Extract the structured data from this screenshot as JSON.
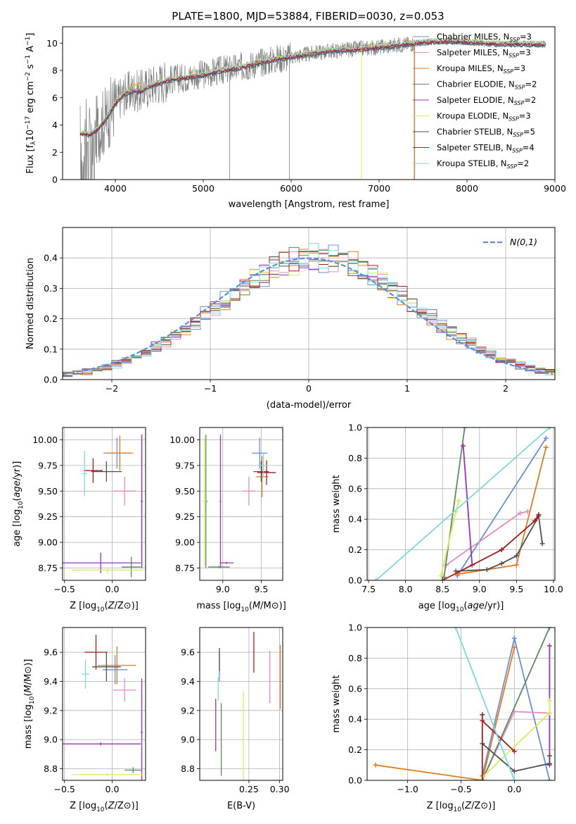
{
  "figure_title": "PLATE=1800, MJD=53884, FIBERID=0030, z=0.053",
  "colors": {
    "chabrier_miles": "#6a8fd8",
    "salpeter_miles": "#e58bc1",
    "kroupa_miles": "#e07b20",
    "chabrier_elodie": "#5a8a5e",
    "salpeter_elodie": "#9b30b8",
    "kroupa_elodie": "#d9ec5b",
    "chabrier_stelib": "#505050",
    "salpeter_stelib": "#a51c1c",
    "kroupa_stelib": "#7fd7df",
    "data": "#808080",
    "normal": "#5b8ed6"
  },
  "chart_data": [
    {
      "id": "spectrum",
      "type": "line",
      "title": "PLATE=1800, MJD=53884, FIBERID=0030, z=0.053",
      "xlabel": "wavelength [Angstrom, rest frame]",
      "ylabel_parts": [
        "Flux [f",
        "λ",
        "10",
        "−17",
        " erg cm",
        "−2",
        " s",
        "−1",
        " A",
        "−1",
        "]"
      ],
      "xlim": [
        3400,
        9000
      ],
      "ylim": [
        0,
        11.2
      ],
      "xticks": [
        4000,
        5000,
        6000,
        7000,
        8000,
        9000
      ],
      "yticks": [
        0,
        2,
        4,
        6,
        8,
        10
      ],
      "continuum": [
        [
          3600,
          3.4
        ],
        [
          3700,
          3.3
        ],
        [
          3800,
          3.7
        ],
        [
          3900,
          4.5
        ],
        [
          4000,
          5.6
        ],
        [
          4100,
          6.3
        ],
        [
          4200,
          6.5
        ],
        [
          4300,
          6.5
        ],
        [
          4400,
          6.9
        ],
        [
          4600,
          7.3
        ],
        [
          4800,
          7.5
        ],
        [
          5000,
          7.7
        ],
        [
          5200,
          8.0
        ],
        [
          5400,
          8.2
        ],
        [
          5600,
          8.5
        ],
        [
          5800,
          8.8
        ],
        [
          6000,
          9.0
        ],
        [
          6200,
          9.2
        ],
        [
          6400,
          9.4
        ],
        [
          6600,
          9.5
        ],
        [
          6800,
          9.6
        ],
        [
          7000,
          9.7
        ],
        [
          7200,
          9.85
        ],
        [
          7400,
          10.0
        ],
        [
          7600,
          10.1
        ],
        [
          7800,
          10.15
        ],
        [
          8000,
          10.1
        ],
        [
          8200,
          10.0
        ],
        [
          8400,
          9.95
        ],
        [
          8600,
          9.95
        ],
        [
          8900,
          9.9
        ]
      ],
      "legend": [
        {
          "label": "Chabrier MILES, N",
          "sub": "SSP",
          "suffix": "=3",
          "color": "#6a8fd8"
        },
        {
          "label": "Salpeter MILES, N",
          "sub": "SSP",
          "suffix": "=3",
          "color": "#e58bc1"
        },
        {
          "label": "Kroupa MILES, N",
          "sub": "SSP",
          "suffix": "=3",
          "color": "#e07b20"
        },
        {
          "label": "Chabrier ELODIE, N",
          "sub": "SSP",
          "suffix": "=2",
          "color": "#5a8a5e"
        },
        {
          "label": "Salpeter ELODIE, N",
          "sub": "SSP",
          "suffix": "=2",
          "color": "#9b30b8"
        },
        {
          "label": "Kroupa ELODIE, N",
          "sub": "SSP",
          "suffix": "=3",
          "color": "#d9ec5b"
        },
        {
          "label": "Chabrier STELIB, N",
          "sub": "SSP",
          "suffix": "=5",
          "color": "#505050"
        },
        {
          "label": "Salpeter STELIB, N",
          "sub": "SSP",
          "suffix": "=4",
          "color": "#a51c1c"
        },
        {
          "label": "Kroupa STELIB, N",
          "sub": "SSP",
          "suffix": "=2",
          "color": "#7fd7df"
        }
      ]
    },
    {
      "id": "residuals",
      "type": "line",
      "xlabel": "(data-model)/error",
      "ylabel": "Normed distribution",
      "xlim": [
        -2.5,
        2.5
      ],
      "ylim": [
        0,
        0.5
      ],
      "xticks": [
        -2,
        -1,
        0,
        1,
        2
      ],
      "xtick_labels": [
        "−2",
        "−1",
        "0",
        "1",
        "2"
      ],
      "yticks": [
        0.0,
        0.1,
        0.2,
        0.3,
        0.4
      ],
      "ytick_labels": [
        "0.0",
        "0.1",
        "0.2",
        "0.3",
        "0.4"
      ],
      "legend": "N(0,1)",
      "bin_width": 0.1,
      "grid": true
    },
    {
      "id": "age_vs_Z",
      "type": "scatter",
      "xlabel": "Z [log10(Z/Z⊙)]",
      "ylabel": "age [log10(age/yr)]",
      "xlim": [
        -0.52,
        0.35
      ],
      "ylim": [
        8.63,
        10.12
      ],
      "xticks": [
        -0.5,
        0.0
      ],
      "xtick_labels": [
        "−0.5",
        "0.0"
      ],
      "yticks": [
        8.75,
        9.0,
        9.25,
        9.5,
        9.75,
        10.0
      ],
      "ytick_labels": [
        "8.75",
        "9.00",
        "9.25",
        "9.50",
        "9.75",
        "10.00"
      ],
      "points": [
        {
          "c": "chabrier_miles",
          "x": 0.05,
          "y": 9.87,
          "xe": 0.14,
          "ye": 0.15
        },
        {
          "c": "salpeter_miles",
          "x": 0.13,
          "y": 9.5,
          "xe": 0.12,
          "ye": 0.14
        },
        {
          "c": "kroupa_miles",
          "x": 0.08,
          "y": 9.87,
          "xe": 0.14,
          "ye": 0.17
        },
        {
          "c": "kroupa_miles",
          "x": 0.31,
          "y": 9.4,
          "xe": 0.01,
          "ye": 0.65
        },
        {
          "c": "chabrier_elodie",
          "x": 0.2,
          "y": 8.76,
          "xe": 0.1,
          "ye": 0.1
        },
        {
          "c": "salpeter_elodie",
          "x": -0.12,
          "y": 8.8,
          "xe": 0.42,
          "ye": 0.1
        },
        {
          "c": "salpeter_elodie",
          "x": 0.31,
          "y": 9.4,
          "xe": 0.01,
          "ye": 0.65
        },
        {
          "c": "kroupa_elodie",
          "x": -0.05,
          "y": 8.73,
          "xe": 0.38,
          "ye": 0.03
        },
        {
          "c": "chabrier_stelib",
          "x": -0.06,
          "y": 9.69,
          "xe": 0.16,
          "ye": 0.1
        },
        {
          "c": "salpeter_stelib",
          "x": -0.2,
          "y": 9.7,
          "xe": 0.1,
          "ye": 0.12
        },
        {
          "c": "kroupa_stelib",
          "x": -0.29,
          "y": 9.67,
          "xe": 0.03,
          "ye": 0.22
        }
      ]
    },
    {
      "id": "age_vs_mass",
      "type": "scatter",
      "xlabel": "mass [log10(M/M⊙)]",
      "xlim": [
        8.7,
        9.78
      ],
      "ylim": [
        8.63,
        10.12
      ],
      "xticks": [
        9.0,
        9.5
      ],
      "xtick_labels": [
        "9.0",
        "9.5"
      ],
      "yticks": [
        8.75,
        9.0,
        9.25,
        9.5,
        9.75,
        10.0
      ],
      "ytick_labels": [
        "8.75",
        "9.00",
        "9.25",
        "9.50",
        "9.75",
        "10.00"
      ],
      "points": [
        {
          "c": "chabrier_miles",
          "x": 9.48,
          "y": 9.87,
          "xe": 0.1,
          "ye": 0.15
        },
        {
          "c": "salpeter_miles",
          "x": 9.34,
          "y": 9.5,
          "xe": 0.08,
          "ye": 0.14
        },
        {
          "c": "kroupa_miles",
          "x": 9.51,
          "y": 9.64,
          "xe": 0.08,
          "ye": 0.2
        },
        {
          "c": "chabrier_elodie",
          "x": 8.78,
          "y": 9.4,
          "xe": 0.02,
          "ye": 0.65
        },
        {
          "c": "chabrier_elodie",
          "x": 8.95,
          "y": 8.76,
          "xe": 0.14,
          "ye": 0.01
        },
        {
          "c": "salpeter_elodie",
          "x": 8.97,
          "y": 9.4,
          "xe": 0.01,
          "ye": 0.65
        },
        {
          "c": "salpeter_elodie",
          "x": 9.05,
          "y": 8.8,
          "xe": 0.09,
          "ye": 0.01
        },
        {
          "c": "kroupa_elodie",
          "x": 8.76,
          "y": 9.4,
          "xe": 0.02,
          "ye": 0.63
        },
        {
          "c": "chabrier_stelib",
          "x": 9.5,
          "y": 9.69,
          "xe": 0.1,
          "ye": 0.1
        },
        {
          "c": "salpeter_stelib",
          "x": 9.57,
          "y": 9.68,
          "xe": 0.12,
          "ye": 0.12
        },
        {
          "c": "kroupa_stelib",
          "x": 9.53,
          "y": 9.75,
          "xe": 0.05,
          "ye": 0.12
        }
      ]
    },
    {
      "id": "mass_vs_Z",
      "type": "scatter",
      "xlabel": "Z [log10(Z/Z⊙)]",
      "ylabel": "mass [log10(M/M⊙)]",
      "xlim": [
        -0.52,
        0.35
      ],
      "ylim": [
        8.72,
        9.77
      ],
      "xticks": [
        -0.5,
        0.0
      ],
      "xtick_labels": [
        "−0.5",
        "0.0"
      ],
      "yticks": [
        8.8,
        9.0,
        9.2,
        9.4,
        9.6
      ],
      "ytick_labels": [
        "8.8",
        "9.0",
        "9.2",
        "9.4",
        "9.6"
      ],
      "points": [
        {
          "c": "chabrier_miles",
          "x": 0.03,
          "y": 9.48,
          "xe": 0.13,
          "ye": 0.1
        },
        {
          "c": "salpeter_miles",
          "x": 0.13,
          "y": 9.34,
          "xe": 0.12,
          "ye": 0.08
        },
        {
          "c": "kroupa_miles",
          "x": 0.05,
          "y": 9.51,
          "xe": 0.2,
          "ye": 0.13
        },
        {
          "c": "chabrier_elodie",
          "x": 0.22,
          "y": 8.79,
          "xe": 0.09,
          "ye": 0.02
        },
        {
          "c": "salpeter_elodie",
          "x": -0.12,
          "y": 8.97,
          "xe": 0.42,
          "ye": 0.01
        },
        {
          "c": "salpeter_elodie",
          "x": 0.31,
          "y": 9.05,
          "xe": 0.01,
          "ye": 0.37
        },
        {
          "c": "kroupa_elodie",
          "x": -0.05,
          "y": 8.76,
          "xe": 0.37,
          "ye": 0.01
        },
        {
          "c": "chabrier_stelib",
          "x": -0.06,
          "y": 9.5,
          "xe": 0.15,
          "ye": 0.1
        },
        {
          "c": "salpeter_stelib",
          "x": -0.17,
          "y": 9.6,
          "xe": 0.12,
          "ye": 0.12
        },
        {
          "c": "kroupa_stelib",
          "x": -0.28,
          "y": 9.45,
          "xe": 0.04,
          "ye": 0.1
        }
      ]
    },
    {
      "id": "mass_vs_ebv",
      "type": "scatter",
      "xlabel": "E(B-V)",
      "xlim": [
        0.17,
        0.305
      ],
      "ylim": [
        8.72,
        9.77
      ],
      "xticks": [
        0.25,
        0.3
      ],
      "xtick_labels": [
        "0.25",
        "0.30"
      ],
      "yticks": [
        8.8,
        9.0,
        9.2,
        9.4,
        9.6
      ],
      "ytick_labels": [
        "8.8",
        "9.0",
        "9.2",
        "9.4",
        "9.6"
      ],
      "points": [
        {
          "c": "chabrier_miles",
          "x": 0.202,
          "y": 9.5,
          "ye": 0.1
        },
        {
          "c": "salpeter_miles",
          "x": 0.284,
          "y": 9.43,
          "ye": 0.18
        },
        {
          "c": "kroupa_miles",
          "x": 0.301,
          "y": 9.43,
          "ye": 0.22
        },
        {
          "c": "chabrier_elodie",
          "x": 0.205,
          "y": 9.0,
          "ye": 0.25
        },
        {
          "c": "salpeter_elodie",
          "x": 0.196,
          "y": 9.1,
          "ye": 0.18
        },
        {
          "c": "kroupa_elodie",
          "x": 0.241,
          "y": 8.9,
          "ye": 0.43
        },
        {
          "c": "chabrier_stelib",
          "x": 0.202,
          "y": 9.55,
          "ye": 0.08
        },
        {
          "c": "salpeter_stelib",
          "x": 0.258,
          "y": 9.6,
          "ye": 0.14
        },
        {
          "c": "kroupa_stelib",
          "x": 0.2,
          "y": 9.35,
          "ye": 0.08
        }
      ]
    },
    {
      "id": "weight_vs_age",
      "type": "line",
      "xlabel": "age [log10(age/yr)]",
      "ylabel": "mass weight",
      "xlim": [
        7.48,
        10.02
      ],
      "ylim": [
        0,
        1.0
      ],
      "xticks": [
        7.5,
        8.0,
        8.5,
        9.0,
        9.5,
        10.0
      ],
      "xtick_labels": [
        "7.5",
        "8.0",
        "8.5",
        "9.0",
        "9.5",
        "10.0"
      ],
      "yticks": [
        0.0,
        0.2,
        0.4,
        0.6,
        0.8,
        1.0
      ],
      "ytick_labels": [
        "0.0",
        "0.2",
        "0.4",
        "0.6",
        "0.8",
        "1.0"
      ],
      "series": [
        {
          "c": "chabrier_miles",
          "pts": [
            [
              8.7,
              0.03
            ],
            [
              9.9,
              0.93
            ]
          ]
        },
        {
          "c": "salpeter_miles",
          "pts": [
            [
              8.55,
              0.1
            ],
            [
              9.55,
              0.44
            ],
            [
              9.65,
              0.45
            ]
          ]
        },
        {
          "c": "kroupa_miles",
          "pts": [
            [
              8.7,
              0.04
            ],
            [
              9.5,
              0.1
            ],
            [
              9.9,
              0.87
            ]
          ]
        },
        {
          "c": "chabrier_elodie",
          "pts": [
            [
              8.52,
              0.02
            ],
            [
              8.8,
              1.0
            ]
          ]
        },
        {
          "c": "salpeter_elodie",
          "pts": [
            [
              8.78,
              0.88
            ],
            [
              8.9,
              0.1
            ]
          ]
        },
        {
          "c": "kroupa_elodie",
          "pts": [
            [
              8.48,
              0.03
            ],
            [
              8.68,
              0.45
            ],
            [
              8.72,
              0.52
            ]
          ]
        },
        {
          "c": "chabrier_stelib",
          "pts": [
            [
              8.68,
              0.06
            ],
            [
              9.1,
              0.07
            ],
            [
              9.3,
              0.11
            ],
            [
              9.5,
              0.16
            ],
            [
              9.8,
              0.42
            ],
            [
              9.85,
              0.24
            ]
          ]
        },
        {
          "c": "salpeter_stelib",
          "pts": [
            [
              8.5,
              0.0
            ],
            [
              9.3,
              0.2
            ],
            [
              9.75,
              0.39
            ],
            [
              9.8,
              0.43
            ]
          ]
        },
        {
          "c": "kroupa_stelib",
          "pts": [
            [
              7.6,
              0.0
            ],
            [
              9.95,
              1.0
            ]
          ]
        }
      ]
    },
    {
      "id": "weight_vs_Z",
      "type": "line",
      "xlabel": "Z [log10(Z/Z⊙)]",
      "ylabel": "mass weight",
      "xlim": [
        -1.38,
        0.38
      ],
      "ylim": [
        0,
        1.0
      ],
      "xticks": [
        -1.0,
        -0.5,
        0.0
      ],
      "xtick_labels": [
        "−1.0",
        "−0.5",
        "0.0"
      ],
      "yticks": [
        0.0,
        0.2,
        0.4,
        0.6,
        0.8,
        1.0
      ],
      "ytick_labels": [
        "0.0",
        "0.2",
        "0.4",
        "0.6",
        "0.8",
        "1.0"
      ],
      "series": [
        {
          "c": "chabrier_miles",
          "pts": [
            [
              -0.3,
              0.03
            ],
            [
              0.0,
              0.93
            ],
            [
              0.33,
              0.0
            ]
          ]
        },
        {
          "c": "salpeter_miles",
          "pts": [
            [
              -0.3,
              0.0
            ],
            [
              0.0,
              0.45
            ],
            [
              0.33,
              0.44
            ]
          ]
        },
        {
          "c": "kroupa_miles",
          "pts": [
            [
              -1.3,
              0.1
            ],
            [
              -0.3,
              0.0
            ],
            [
              0.0,
              0.87
            ]
          ]
        },
        {
          "c": "chabrier_elodie",
          "pts": [
            [
              -0.3,
              0.0
            ],
            [
              0.33,
              1.0
            ]
          ]
        },
        {
          "c": "salpeter_elodie",
          "pts": [
            [
              0.33,
              0.1
            ],
            [
              0.33,
              0.88
            ]
          ]
        },
        {
          "c": "kroupa_elodie",
          "pts": [
            [
              -0.3,
              0.02
            ],
            [
              0.33,
              0.44
            ],
            [
              0.33,
              0.52
            ]
          ]
        },
        {
          "c": "chabrier_stelib",
          "pts": [
            [
              -0.3,
              0.24
            ],
            [
              0.0,
              0.06
            ],
            [
              0.33,
              0.11
            ],
            [
              0.33,
              0.16
            ]
          ]
        },
        {
          "c": "salpeter_stelib",
          "pts": [
            [
              -0.3,
              0.0
            ],
            [
              -0.3,
              0.43
            ],
            [
              -0.3,
              0.39
            ],
            [
              0.0,
              0.19
            ]
          ]
        },
        {
          "c": "kroupa_stelib",
          "pts": [
            [
              -0.55,
              1.0
            ],
            [
              0.0,
              0.0
            ]
          ]
        }
      ]
    }
  ]
}
